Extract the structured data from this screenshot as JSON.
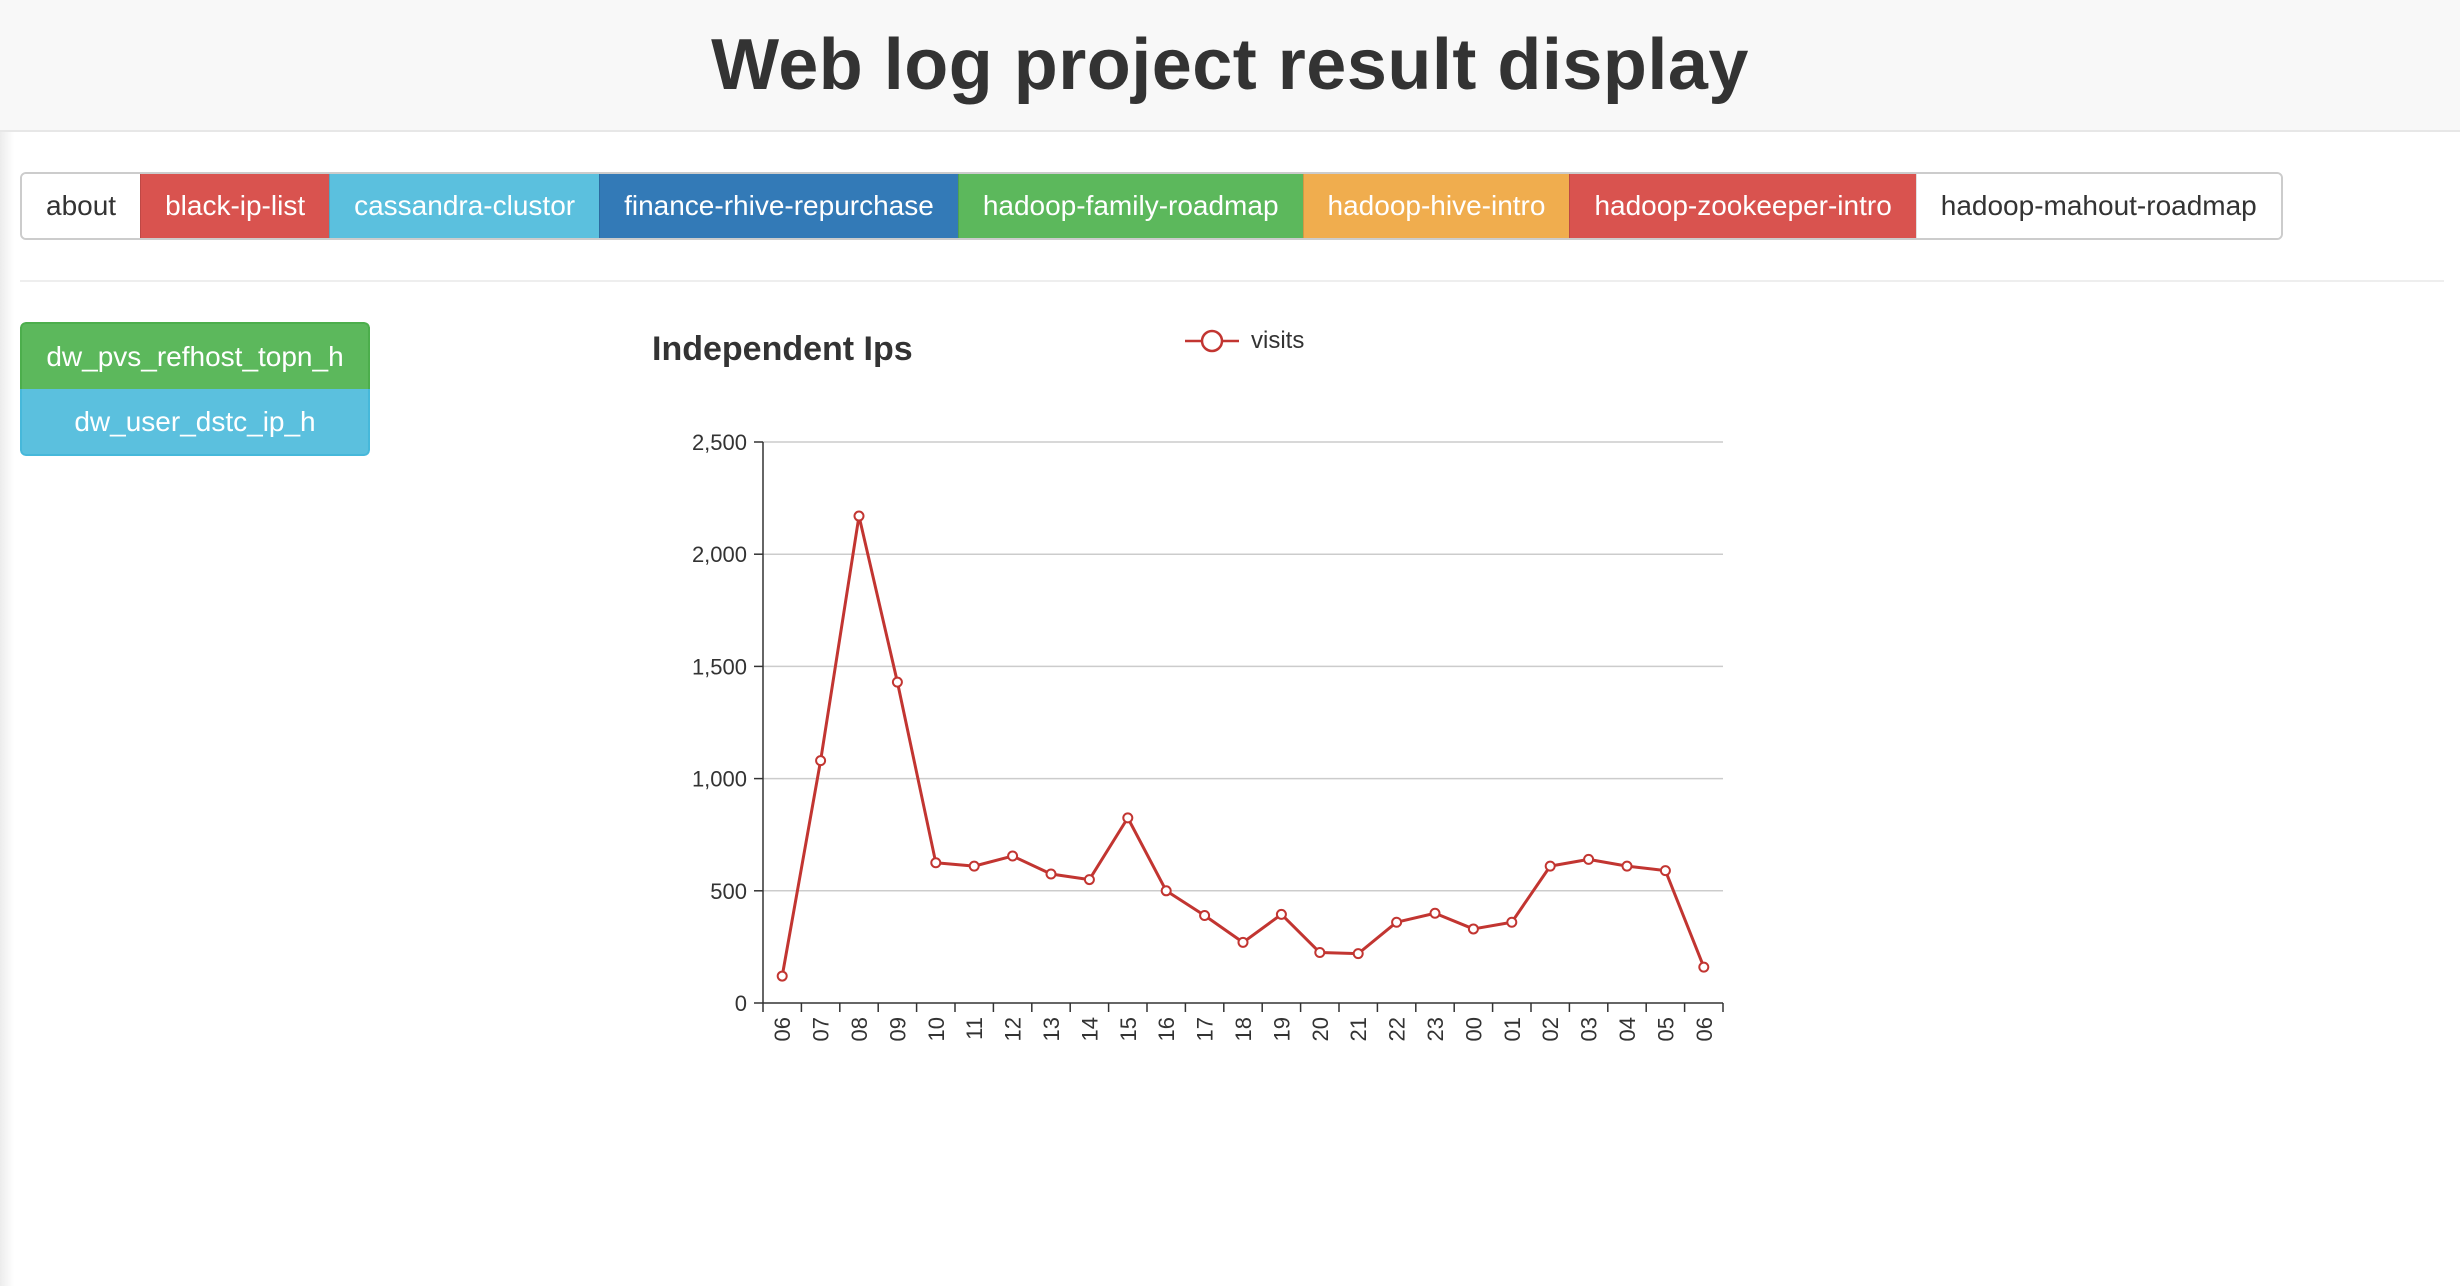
{
  "header": {
    "title": "Web log project result display"
  },
  "nav": {
    "items": [
      {
        "label": "about",
        "style": "default"
      },
      {
        "label": "black-ip-list",
        "style": "danger"
      },
      {
        "label": "cassandra-clustor",
        "style": "info"
      },
      {
        "label": "finance-rhive-repurchase",
        "style": "primary"
      },
      {
        "label": "hadoop-family-roadmap",
        "style": "success"
      },
      {
        "label": "hadoop-hive-intro",
        "style": "warning"
      },
      {
        "label": "hadoop-zookeeper-intro",
        "style": "danger"
      },
      {
        "label": "hadoop-mahout-roadmap",
        "style": "default"
      }
    ]
  },
  "sidebar": {
    "items": [
      {
        "label": "dw_pvs_refhost_topn_h",
        "style": "success"
      },
      {
        "label": "dw_user_dstc_ip_h",
        "style": "info"
      }
    ]
  },
  "colors": {
    "series": "#c23531",
    "danger": "#d9534f",
    "info": "#5bc0de",
    "primary": "#337ab7",
    "success": "#5cb85c",
    "warning": "#f0ad4e"
  },
  "chart_data": {
    "type": "line",
    "title": "Independent Ips",
    "legend": "top-center",
    "categories": [
      "06",
      "07",
      "08",
      "09",
      "10",
      "11",
      "12",
      "13",
      "14",
      "15",
      "16",
      "17",
      "18",
      "19",
      "20",
      "21",
      "22",
      "23",
      "00",
      "01",
      "02",
      "03",
      "04",
      "05",
      "06"
    ],
    "series": [
      {
        "name": "visits",
        "values": [
          120,
          1080,
          2170,
          1430,
          625,
          610,
          655,
          575,
          550,
          825,
          500,
          390,
          270,
          395,
          225,
          220,
          360,
          400,
          330,
          360,
          610,
          640,
          610,
          590,
          160
        ]
      }
    ],
    "ylim": [
      0,
      2500
    ],
    "yticks": [
      0,
      500,
      1000,
      1500,
      2000,
      2500
    ],
    "ytick_labels": [
      "0",
      "500",
      "1,000",
      "1,500",
      "2,000",
      "2,500"
    ],
    "grid": true
  }
}
